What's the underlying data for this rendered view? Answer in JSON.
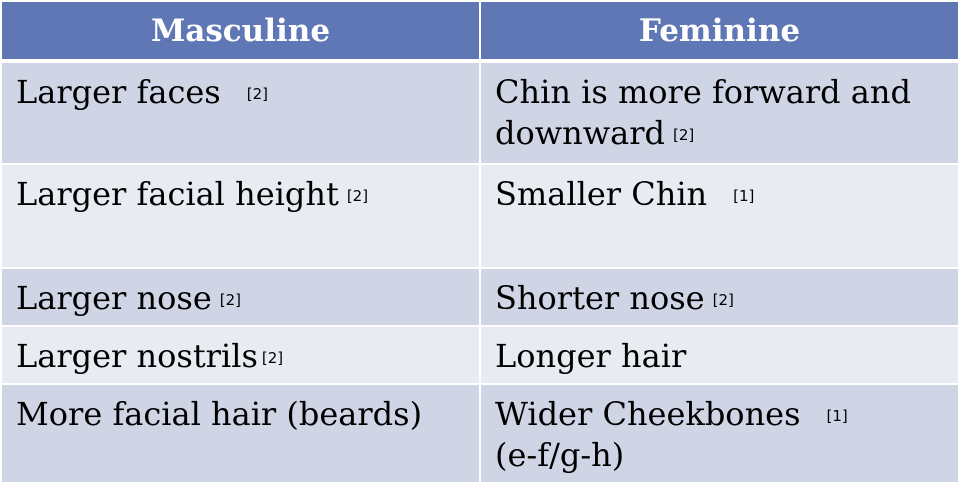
{
  "table": {
    "headers": [
      "Masculine",
      "Feminine"
    ],
    "rows": [
      {
        "masculine": {
          "text": "Larger faces",
          "ref": "[2]"
        },
        "feminine": {
          "text": "Chin is more forward and downward",
          "ref": "[2]"
        }
      },
      {
        "masculine": {
          "text": "Larger facial height",
          "ref": "[2]"
        },
        "feminine": {
          "text": "Smaller Chin",
          "ref": "[1]"
        }
      },
      {
        "masculine": {
          "text": "Larger nose",
          "ref": "[2]"
        },
        "feminine": {
          "text": "Shorter nose",
          "ref": "[2]"
        }
      },
      {
        "masculine": {
          "text": "Larger nostrils",
          "ref": "[2]"
        },
        "feminine": {
          "text": "Longer hair"
        }
      },
      {
        "masculine": {
          "text": "More facial hair (beards)"
        },
        "feminine": {
          "text": "Wider Cheekbones",
          "ref": "[1]",
          "text2": "(e-f/g-h)"
        }
      }
    ]
  },
  "colors": {
    "header_bg": "#6077b6",
    "row_dark": "#d0d5e6",
    "row_light": "#e9ebf3",
    "border": "#ffffff"
  }
}
